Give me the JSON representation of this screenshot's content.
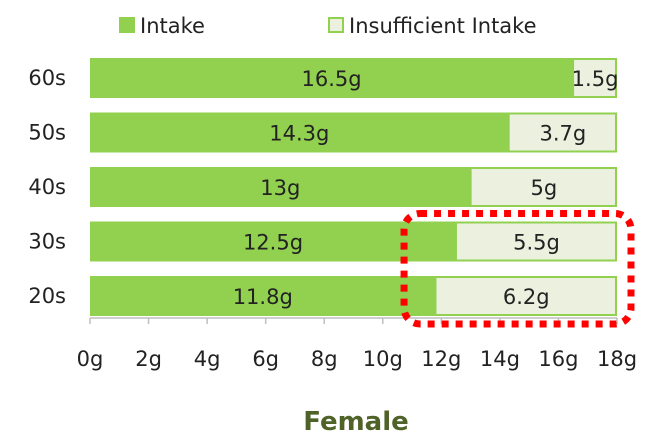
{
  "chart_data": {
    "type": "bar",
    "orientation": "horizontal",
    "stacked": true,
    "title": "Female",
    "categories": [
      "60s",
      "50s",
      "40s",
      "30s",
      "20s"
    ],
    "series": [
      {
        "name": "Intake",
        "values": [
          16.5,
          14.3,
          13,
          12.5,
          11.8
        ],
        "labels": [
          "16.5g",
          "14.3g",
          "13g",
          "12.5g",
          "11.8g"
        ]
      },
      {
        "name": "Insufficient Intake",
        "values": [
          1.5,
          3.7,
          5,
          5.5,
          6.2
        ],
        "labels": [
          "1.5g",
          "3.7g",
          "5g",
          "5.5g",
          "6.2g"
        ]
      }
    ],
    "xlim": [
      0,
      18
    ],
    "xticks": [
      0,
      2,
      4,
      6,
      8,
      10,
      12,
      14,
      16,
      18
    ],
    "xtick_labels": [
      "0g",
      "2g",
      "4g",
      "6g",
      "8g",
      "10g",
      "12g",
      "14g",
      "16g",
      "18g"
    ],
    "legend_position": "top",
    "grid": false,
    "highlight": {
      "style": "red dotted rounded rectangle",
      "categories": [
        "30s",
        "20s"
      ],
      "x_range": [
        11,
        18
      ]
    },
    "colors": {
      "intake": "#92d050",
      "insufficient_fill": "#ebf1de",
      "insufficient_border": "#92d050",
      "highlight": "#ff0000",
      "title": "#4f6228"
    }
  }
}
